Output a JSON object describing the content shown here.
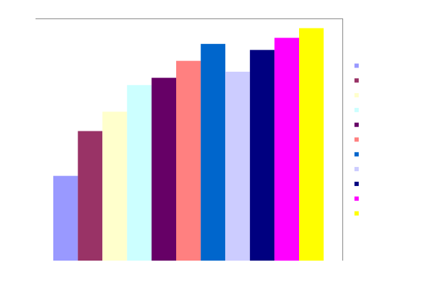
{
  "chart_data": {
    "type": "bar",
    "title": "",
    "xlabel": "",
    "ylabel": "",
    "ylim": [
      0,
      100
    ],
    "grid": false,
    "legend_position": "right",
    "categories": [
      "",
      "",
      "",
      "",
      "",
      "",
      "",
      "",
      "",
      "",
      ""
    ],
    "series": [
      {
        "values": [
          35,
          53.5,
          61.5,
          72.5,
          75.5,
          82.5,
          89.5,
          78,
          87,
          92,
          96
        ],
        "colors": [
          "#9999ff",
          "#993366",
          "#ffffcc",
          "#ccffff",
          "#660066",
          "#ff8080",
          "#0066cc",
          "#ccccff",
          "#000080",
          "#ff00ff",
          "#ffff00"
        ]
      }
    ],
    "legend": [
      {
        "label": "",
        "color": "#9999ff"
      },
      {
        "label": "",
        "color": "#993366"
      },
      {
        "label": "",
        "color": "#ffffcc"
      },
      {
        "label": "",
        "color": "#ccffff"
      },
      {
        "label": "",
        "color": "#660066"
      },
      {
        "label": "",
        "color": "#ff8080"
      },
      {
        "label": "",
        "color": "#0066cc"
      },
      {
        "label": "",
        "color": "#ccccff"
      },
      {
        "label": "",
        "color": "#000080"
      },
      {
        "label": "",
        "color": "#ff00ff"
      },
      {
        "label": "",
        "color": "#ffff00"
      }
    ]
  }
}
